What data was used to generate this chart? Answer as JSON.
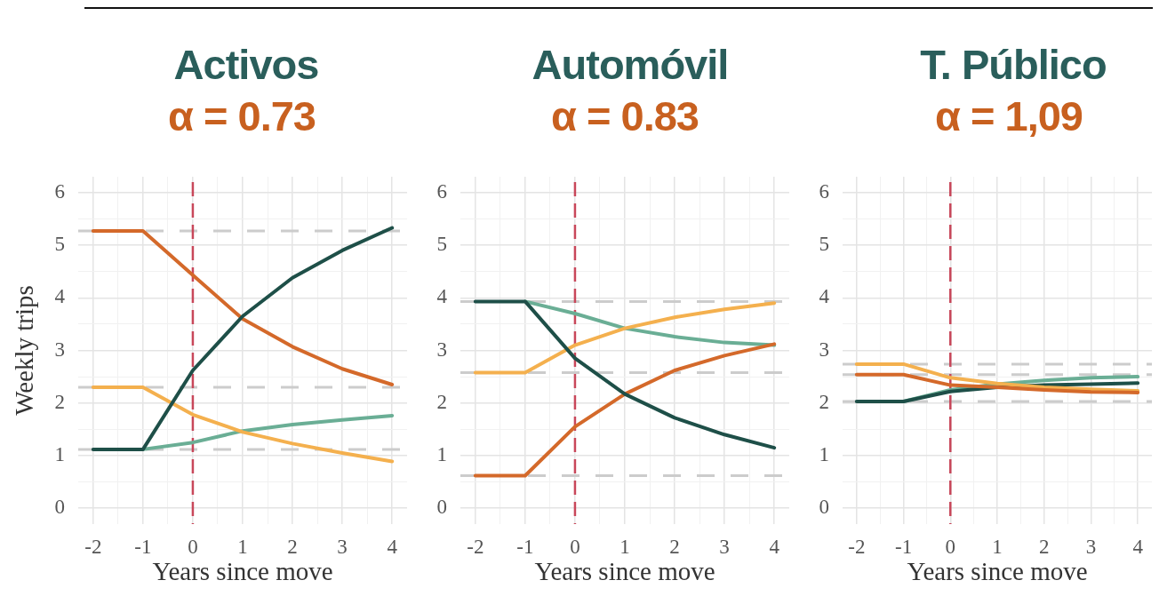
{
  "chart_data": [
    {
      "type": "line",
      "title": "Activos",
      "subtitle": "α = 0.73",
      "xlabel": "Years since move",
      "ylabel": "Weekly trips",
      "x": [
        -2,
        -1,
        0,
        1,
        2,
        3,
        4
      ],
      "series": [
        {
          "color": "#6aae95",
          "values": [
            null,
            1.12,
            1.25,
            1.47,
            1.59,
            1.68,
            1.76
          ]
        },
        {
          "color": "#f4b04e",
          "values": [
            2.3,
            2.3,
            1.78,
            1.45,
            1.23,
            1.05,
            0.89
          ]
        },
        {
          "color": "#d4692a",
          "values": [
            5.27,
            5.27,
            4.43,
            3.6,
            3.07,
            2.65,
            2.35
          ]
        },
        {
          "color": "#1e4f48",
          "values": [
            1.12,
            1.12,
            2.62,
            3.65,
            4.38,
            4.9,
            5.33
          ]
        }
      ],
      "xlim": [
        -2.3,
        4.3
      ],
      "ylim": [
        -0.3,
        6.3
      ],
      "xticks": [
        -2,
        {
          "value": -1.5,
          "label": null
        },
        -1,
        {
          "value": -0.5,
          "label": null
        },
        0,
        {
          "value": 0.5,
          "label": null
        },
        1,
        {
          "value": 1.5,
          "label": null
        },
        2,
        {
          "value": 2.5,
          "label": null
        },
        3,
        {
          "value": 3.5,
          "label": null
        },
        4
      ],
      "yticks": [
        0,
        {
          "value": 0.5,
          "label": null
        },
        1,
        {
          "value": 1.5,
          "label": null
        },
        2,
        {
          "value": 2.5,
          "label": null
        },
        3,
        {
          "value": 3.5,
          "label": null
        },
        4,
        {
          "value": 4.5,
          "label": null
        },
        5,
        {
          "value": 5.5,
          "label": null
        },
        6
      ],
      "grid": true,
      "ref_lines": [
        {
          "axis": "y",
          "value": 5.27,
          "color": "#cccccc",
          "line_style": "dashed"
        },
        {
          "axis": "y",
          "value": 2.3,
          "color": "#cccccc",
          "line_style": "dashed"
        },
        {
          "axis": "y",
          "value": 1.12,
          "color": "#cccccc",
          "line_style": "dashed"
        },
        {
          "axis": "x",
          "value": 0,
          "color": "#c8475a",
          "line_style": "dashed"
        }
      ]
    },
    {
      "type": "line",
      "title": "Automóvil",
      "subtitle": "α = 0.83",
      "xlabel": "Years since move",
      "x": [
        -2,
        -1,
        0,
        1,
        2,
        3,
        4
      ],
      "series": [
        {
          "color": "#6aae95",
          "values": [
            null,
            3.93,
            3.7,
            3.42,
            3.26,
            3.15,
            3.1
          ]
        },
        {
          "color": "#f4b04e",
          "values": [
            2.58,
            2.58,
            3.1,
            3.42,
            3.63,
            3.78,
            3.9
          ]
        },
        {
          "color": "#d4692a",
          "values": [
            0.62,
            0.62,
            1.55,
            2.17,
            2.62,
            2.9,
            3.12
          ]
        },
        {
          "color": "#1e4f48",
          "values": [
            3.93,
            3.93,
            2.85,
            2.17,
            1.72,
            1.4,
            1.15
          ]
        }
      ],
      "xlim": [
        -2.3,
        4.3
      ],
      "ylim": [
        -0.3,
        6.3
      ],
      "xticks": [
        -2,
        {
          "value": -1.5,
          "label": null
        },
        -1,
        {
          "value": -0.5,
          "label": null
        },
        0,
        {
          "value": 0.5,
          "label": null
        },
        1,
        {
          "value": 1.5,
          "label": null
        },
        2,
        {
          "value": 2.5,
          "label": null
        },
        3,
        {
          "value": 3.5,
          "label": null
        },
        4
      ],
      "yticks": [
        0,
        {
          "value": 0.5,
          "label": null
        },
        1,
        {
          "value": 1.5,
          "label": null
        },
        2,
        {
          "value": 2.5,
          "label": null
        },
        3,
        {
          "value": 3.5,
          "label": null
        },
        4,
        {
          "value": 4.5,
          "label": null
        },
        5,
        {
          "value": 5.5,
          "label": null
        },
        6
      ],
      "grid": true,
      "ref_lines": [
        {
          "axis": "y",
          "value": 3.93,
          "color": "#cccccc",
          "line_style": "dashed"
        },
        {
          "axis": "y",
          "value": 2.58,
          "color": "#cccccc",
          "line_style": "dashed"
        },
        {
          "axis": "y",
          "value": 0.62,
          "color": "#cccccc",
          "line_style": "dashed"
        },
        {
          "axis": "x",
          "value": 0,
          "color": "#c8475a",
          "line_style": "dashed"
        }
      ]
    },
    {
      "type": "line",
      "title": "T. Público",
      "subtitle": "α = 1,09",
      "xlabel": "Years since move",
      "x": [
        -2,
        -1,
        0,
        1,
        2,
        3,
        4
      ],
      "series": [
        {
          "color": "#6aae95",
          "values": [
            null,
            2.03,
            2.25,
            2.36,
            2.43,
            2.48,
            2.5
          ]
        },
        {
          "color": "#1e4f48",
          "values": [
            2.03,
            2.03,
            2.22,
            2.3,
            2.34,
            2.36,
            2.38
          ]
        },
        {
          "color": "#f4b04e",
          "values": [
            2.74,
            2.74,
            2.48,
            2.37,
            2.3,
            2.26,
            2.23
          ]
        },
        {
          "color": "#d4692a",
          "values": [
            2.54,
            2.54,
            2.34,
            2.3,
            2.25,
            2.21,
            2.2
          ]
        }
      ],
      "xlim": [
        -2.3,
        4.3
      ],
      "ylim": [
        -0.3,
        6.3
      ],
      "xticks": [
        -2,
        {
          "value": -1.5,
          "label": null
        },
        -1,
        {
          "value": -0.5,
          "label": null
        },
        0,
        {
          "value": 0.5,
          "label": null
        },
        1,
        {
          "value": 1.5,
          "label": null
        },
        2,
        {
          "value": 2.5,
          "label": null
        },
        3,
        {
          "value": 3.5,
          "label": null
        },
        4
      ],
      "yticks": [
        0,
        {
          "value": 0.5,
          "label": null
        },
        1,
        {
          "value": 1.5,
          "label": null
        },
        2,
        {
          "value": 2.5,
          "label": null
        },
        3,
        {
          "value": 3.5,
          "label": null
        },
        4,
        {
          "value": 4.5,
          "label": null
        },
        5,
        {
          "value": 5.5,
          "label": null
        },
        6
      ],
      "grid": true,
      "ref_lines": [
        {
          "axis": "y",
          "value": 2.74,
          "color": "#cccccc",
          "line_style": "dashed"
        },
        {
          "axis": "y",
          "value": 2.54,
          "color": "#cccccc",
          "line_style": "dashed"
        },
        {
          "axis": "y",
          "value": 2.03,
          "color": "#cccccc",
          "line_style": "dashed"
        },
        {
          "axis": "x",
          "value": 0,
          "color": "#c8475a",
          "line_style": "dashed"
        }
      ]
    }
  ]
}
